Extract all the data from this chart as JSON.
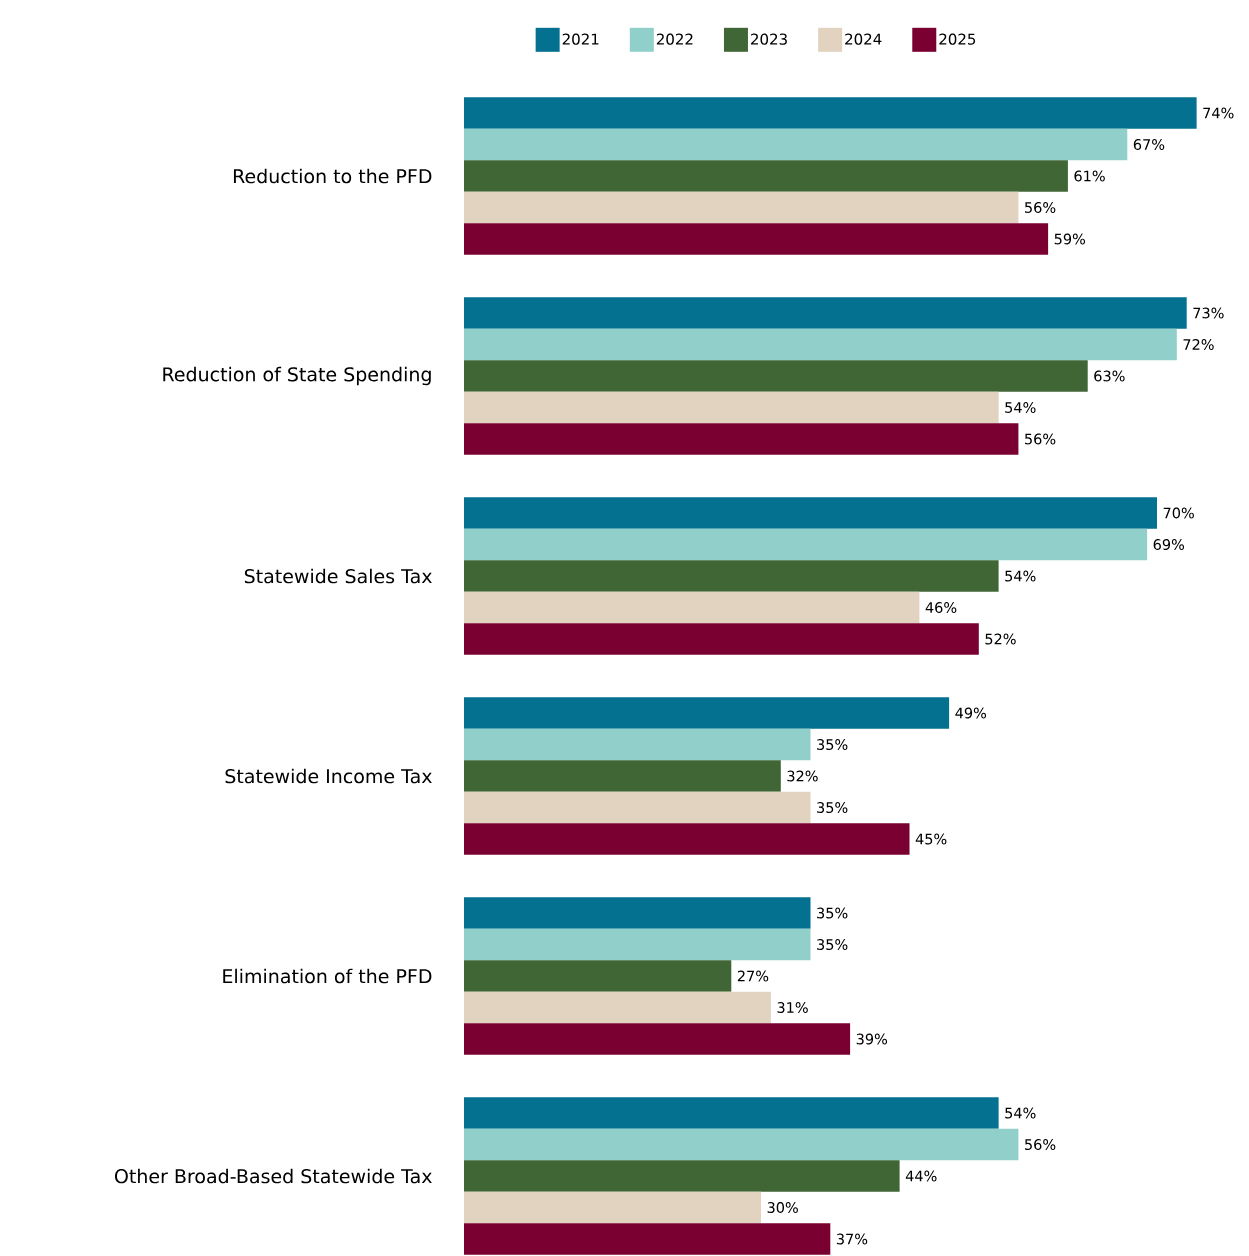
{
  "chart_data": {
    "type": "bar",
    "orientation": "horizontal",
    "legend": "top",
    "categories": [
      "Reduction to the PFD",
      "Reduction of State Spending",
      "Statewide Sales Tax",
      "Statewide Income Tax",
      "Elimination of the PFD",
      "Other Broad-Based Statewide Tax"
    ],
    "series": [
      {
        "name": "2021",
        "color": "#03718f",
        "values": [
          74,
          73,
          70,
          49,
          35,
          54
        ],
        "value_labels": [
          "74%",
          "73%",
          "70%",
          "49%",
          "35%",
          "54%"
        ]
      },
      {
        "name": "2022",
        "color": "#91cfca",
        "values": [
          67,
          72,
          69,
          35,
          35,
          56
        ],
        "value_labels": [
          "67%",
          "72%",
          "69%",
          "35%",
          "35%",
          "56%"
        ]
      },
      {
        "name": "2023",
        "color": "#406636",
        "values": [
          61,
          63,
          54,
          32,
          27,
          44
        ],
        "value_labels": [
          "61%",
          "63%",
          "54%",
          "32%",
          "27%",
          "44%"
        ]
      },
      {
        "name": "2024",
        "color": "#e2d3c0",
        "values": [
          56,
          54,
          46,
          35,
          31,
          30
        ],
        "value_labels": [
          "56%",
          "54%",
          "46%",
          "35%",
          "31%",
          "30%"
        ]
      },
      {
        "name": "2025",
        "color": "#7b0032",
        "values": [
          59,
          56,
          52,
          45,
          39,
          37
        ],
        "value_labels": [
          "59%",
          "56%",
          "52%",
          "45%",
          "39%",
          "37%"
        ]
      }
    ]
  }
}
